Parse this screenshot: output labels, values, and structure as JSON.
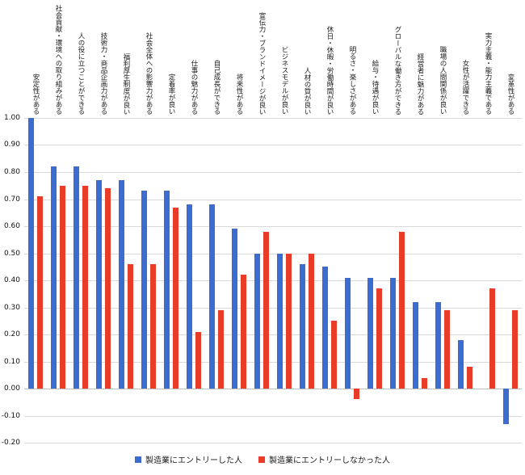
{
  "chart_data": {
    "type": "bar",
    "title": "",
    "categories": [
      "安定性がある",
      "社会貢献・環境への取り組みがある",
      "人の役に立つことができる",
      "技術力・商品企画力がある",
      "福利厚生制度が良い",
      "社会全体への影響力がある",
      "定着率が良い",
      "仕事の魅力がある",
      "自己成長ができる",
      "将来性がある",
      "宣伝力・ブランドイメージが良い",
      "ビジネスモデルが良い",
      "人材の質が良い",
      "休日・休暇・労働時間が良い",
      "明るさ・楽しさがある",
      "給与・待遇が良い",
      "グローバルな働き方ができる",
      "経営者に魅力がある",
      "職場の人間関係が良い",
      "女性が活躍できる",
      "実力主義・能力主義である",
      "変革性がある"
    ],
    "series": [
      {
        "name": "製造業にエントリーした人",
        "color": "#3d6cd1",
        "values": [
          1.0,
          0.82,
          0.82,
          0.77,
          0.77,
          0.73,
          0.73,
          0.68,
          0.68,
          0.59,
          0.5,
          0.5,
          0.46,
          0.45,
          0.41,
          0.41,
          0.41,
          0.32,
          0.32,
          0.18,
          0.0,
          -0.13
        ]
      },
      {
        "name": "製造業にエントリーしなかった人",
        "color": "#e83c28",
        "values": [
          0.71,
          0.75,
          0.75,
          0.74,
          0.46,
          0.46,
          0.67,
          0.21,
          0.29,
          0.42,
          0.58,
          0.5,
          0.5,
          0.25,
          -0.04,
          0.37,
          0.58,
          0.04,
          0.29,
          0.08,
          0.37,
          0.29
        ]
      }
    ],
    "ylim": [
      -0.2,
      1.0
    ],
    "yticks": [
      "1.00",
      "0.90",
      "0.80",
      "0.70",
      "0.60",
      "0.50",
      "0.40",
      "0.30",
      "0.20",
      "0.10",
      "0.00",
      "-0.10",
      "-0.20"
    ],
    "grid": true,
    "legend_position": "bottom",
    "grid_color": "#d9d9d9",
    "zero_line_color": "#bdbdbd",
    "text_color": "#1a1a1a"
  }
}
